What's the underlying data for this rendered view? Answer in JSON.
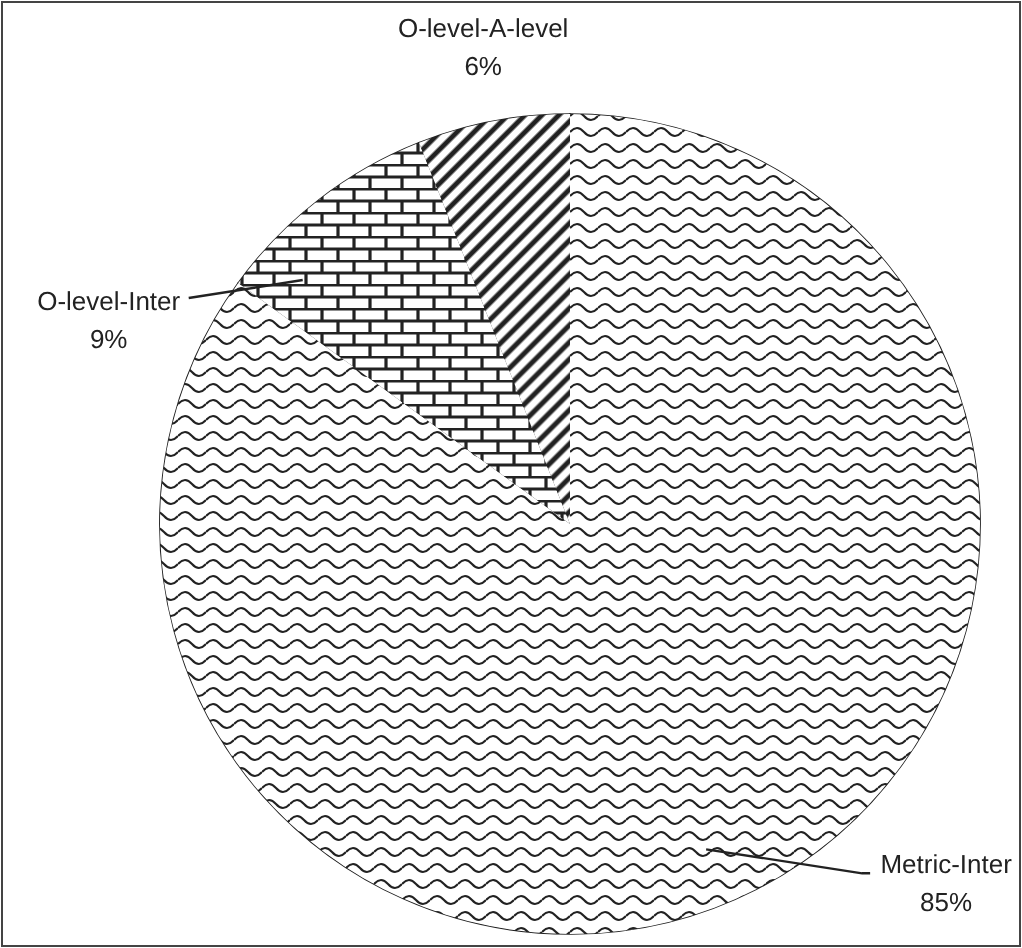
{
  "chart_data": {
    "type": "pie",
    "categories": [
      "Metric-Inter",
      "O-level-Inter",
      "O-level-A-level"
    ],
    "values": [
      85,
      9,
      6
    ],
    "colors": [
      "#ffffff",
      "#ffffff",
      "#ffffff"
    ],
    "value_labels": [
      "85%",
      "9%",
      "6%"
    ],
    "legend": false
  }
}
